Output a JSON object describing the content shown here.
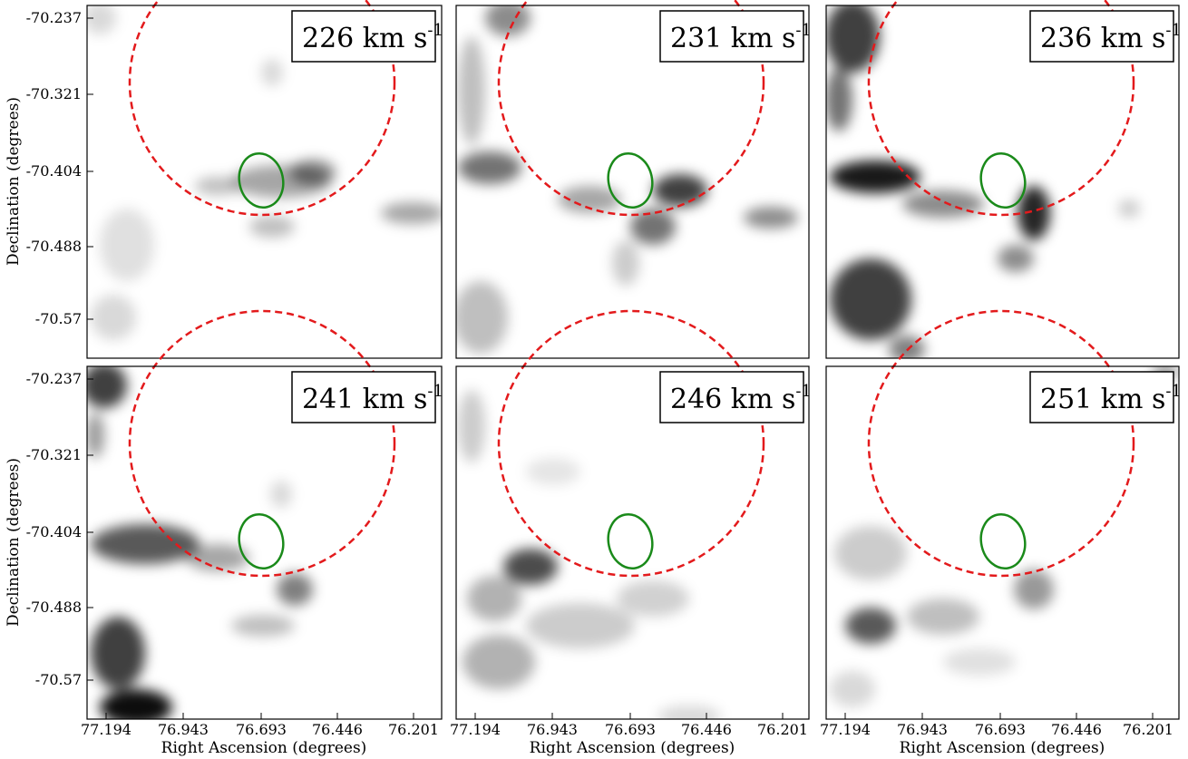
{
  "figure": {
    "x_axis_title": "Right Ascension (degrees)",
    "y_axis_title": "Declination (degrees)",
    "x_ticks": [
      "77.194",
      "76.943",
      "76.693",
      "76.446",
      "76.201"
    ],
    "y_ticks": [
      "-70.237",
      "-70.321",
      "-70.404",
      "-70.488",
      "-70.57"
    ],
    "colors": {
      "circle": "#e31a1c",
      "ellipse": "#1a8a1a",
      "frame": "#000000"
    },
    "panels": [
      {
        "label": "226 km s",
        "superscript": "-1"
      },
      {
        "label": "231 km s",
        "superscript": "-1"
      },
      {
        "label": "236 km s",
        "superscript": "-1"
      },
      {
        "label": "241 km s",
        "superscript": "-1"
      },
      {
        "label": "246 km s",
        "superscript": "-1"
      },
      {
        "label": "251 km s",
        "superscript": "-1"
      }
    ]
  }
}
